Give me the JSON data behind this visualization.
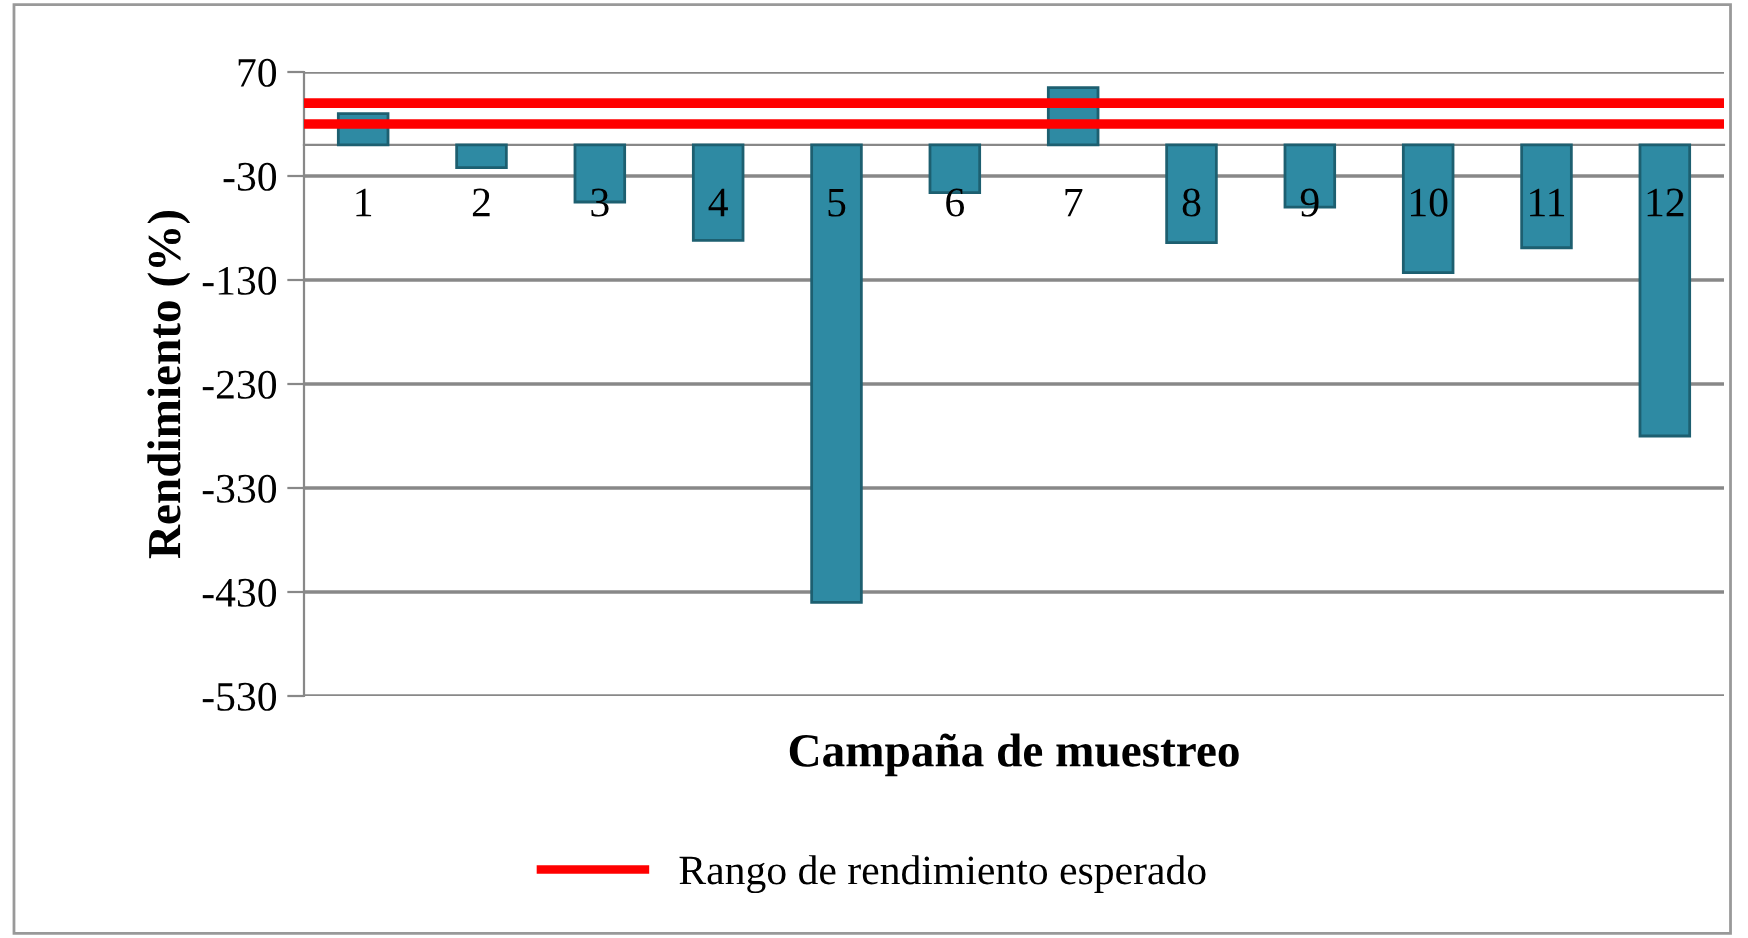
{
  "chart_data": {
    "type": "bar",
    "xlabel": "Campaña de muestreo",
    "ylabel": "Rendimiento (%)",
    "categories": [
      "1",
      "2",
      "3",
      "4",
      "5",
      "6",
      "7",
      "8",
      "9",
      "10",
      "11",
      "12"
    ],
    "values": [
      30,
      -22,
      -55,
      -92,
      -440,
      -46,
      55,
      -94,
      -60,
      -123,
      -99,
      -280
    ],
    "color": "#2e8aa3",
    "ylim": [
      -530,
      70
    ],
    "yticks": [
      -530,
      -430,
      -330,
      -230,
      -130,
      -30,
      70
    ],
    "grid": "y",
    "ref_lines": [
      {
        "axis": "y",
        "value": 40,
        "label": "Rango de rendimiento esperado",
        "color": "#ff0000"
      },
      {
        "axis": "y",
        "value": 20,
        "color": "#ff0000"
      }
    ],
    "legend": "bottom"
  }
}
